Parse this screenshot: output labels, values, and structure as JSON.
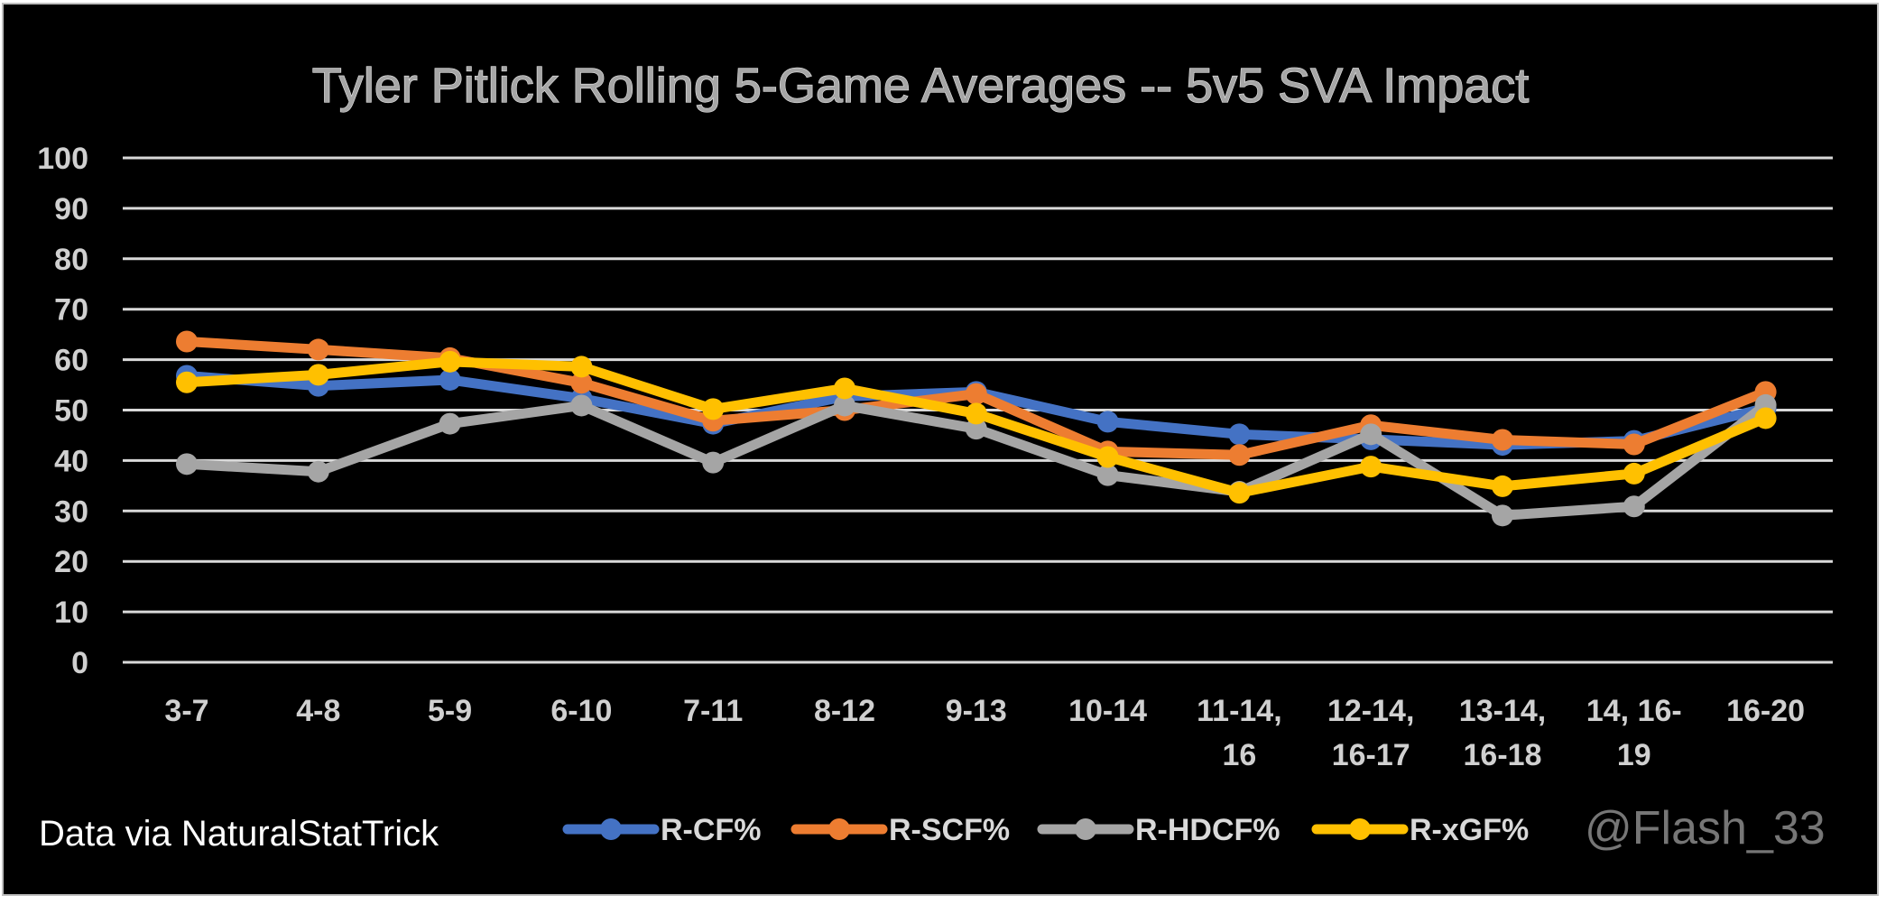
{
  "chart_data": {
    "type": "line",
    "title": "Tyler Pitlick Rolling 5-Game Averages -- 5v5 SVA Impact",
    "xlabel": "",
    "ylabel": "",
    "ylim": [
      0,
      100
    ],
    "yticks": [
      0,
      10,
      20,
      30,
      40,
      50,
      60,
      70,
      80,
      90,
      100
    ],
    "grid": true,
    "legend_position": "bottom",
    "categories": [
      [
        "3-7"
      ],
      [
        "4-8"
      ],
      [
        "5-9"
      ],
      [
        "6-10"
      ],
      [
        "7-11"
      ],
      [
        "8-12"
      ],
      [
        "9-13"
      ],
      [
        "10-14"
      ],
      [
        "11-14,",
        "16"
      ],
      [
        "12-14,",
        "16-17"
      ],
      [
        "13-14,",
        "16-18"
      ],
      [
        "14, 16-",
        "19"
      ],
      [
        "16-20"
      ]
    ],
    "series": [
      {
        "name": "R-CF%",
        "color": "#4472C4",
        "values": [
          56.8,
          54.8,
          56.0,
          52.3,
          47.3,
          52.7,
          53.6,
          47.7,
          45.2,
          44.2,
          43.1,
          43.9,
          50.4
        ]
      },
      {
        "name": "R-SCF%",
        "color": "#ED7D31",
        "values": [
          63.6,
          62.0,
          60.3,
          55.4,
          47.9,
          50.0,
          53.2,
          41.8,
          41.1,
          47.0,
          44.1,
          43.2,
          53.6
        ]
      },
      {
        "name": "R-HDCF%",
        "color": "#A5A5A5",
        "values": [
          39.3,
          37.8,
          47.3,
          50.9,
          39.6,
          50.9,
          46.3,
          37.1,
          33.8,
          45.2,
          29.1,
          30.9,
          51.0
        ]
      },
      {
        "name": "R-xGF%",
        "color": "#FFC000",
        "values": [
          55.5,
          57.0,
          59.6,
          58.6,
          50.2,
          54.3,
          49.3,
          40.7,
          33.6,
          38.8,
          34.9,
          37.4,
          48.4
        ]
      }
    ]
  },
  "footer": {
    "source": "Data via NaturalStatTrick",
    "credit": "@Flash_33"
  }
}
